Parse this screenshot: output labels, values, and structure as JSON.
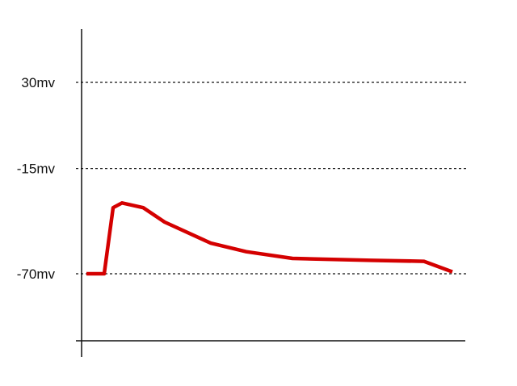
{
  "chart_data": {
    "type": "line",
    "title": "",
    "xlabel": "",
    "ylabel": "",
    "grid": "dashed reference lines at labeled levels",
    "y_ticks": [
      {
        "value": 30,
        "label": "30mv"
      },
      {
        "value": -15,
        "label": "-15mv"
      },
      {
        "value": -70,
        "label": "-70mv"
      }
    ],
    "series": [
      {
        "color": "#d40000",
        "x": [
          0,
          5,
          7.5,
          10,
          16,
          22,
          35,
          45,
          58,
          80,
          95,
          103
        ],
        "y": [
          -70,
          -70,
          -35.5,
          -33,
          -35.5,
          -43,
          -54,
          -58.5,
          -62,
          -63,
          -63.5,
          -69
        ]
      }
    ]
  }
}
